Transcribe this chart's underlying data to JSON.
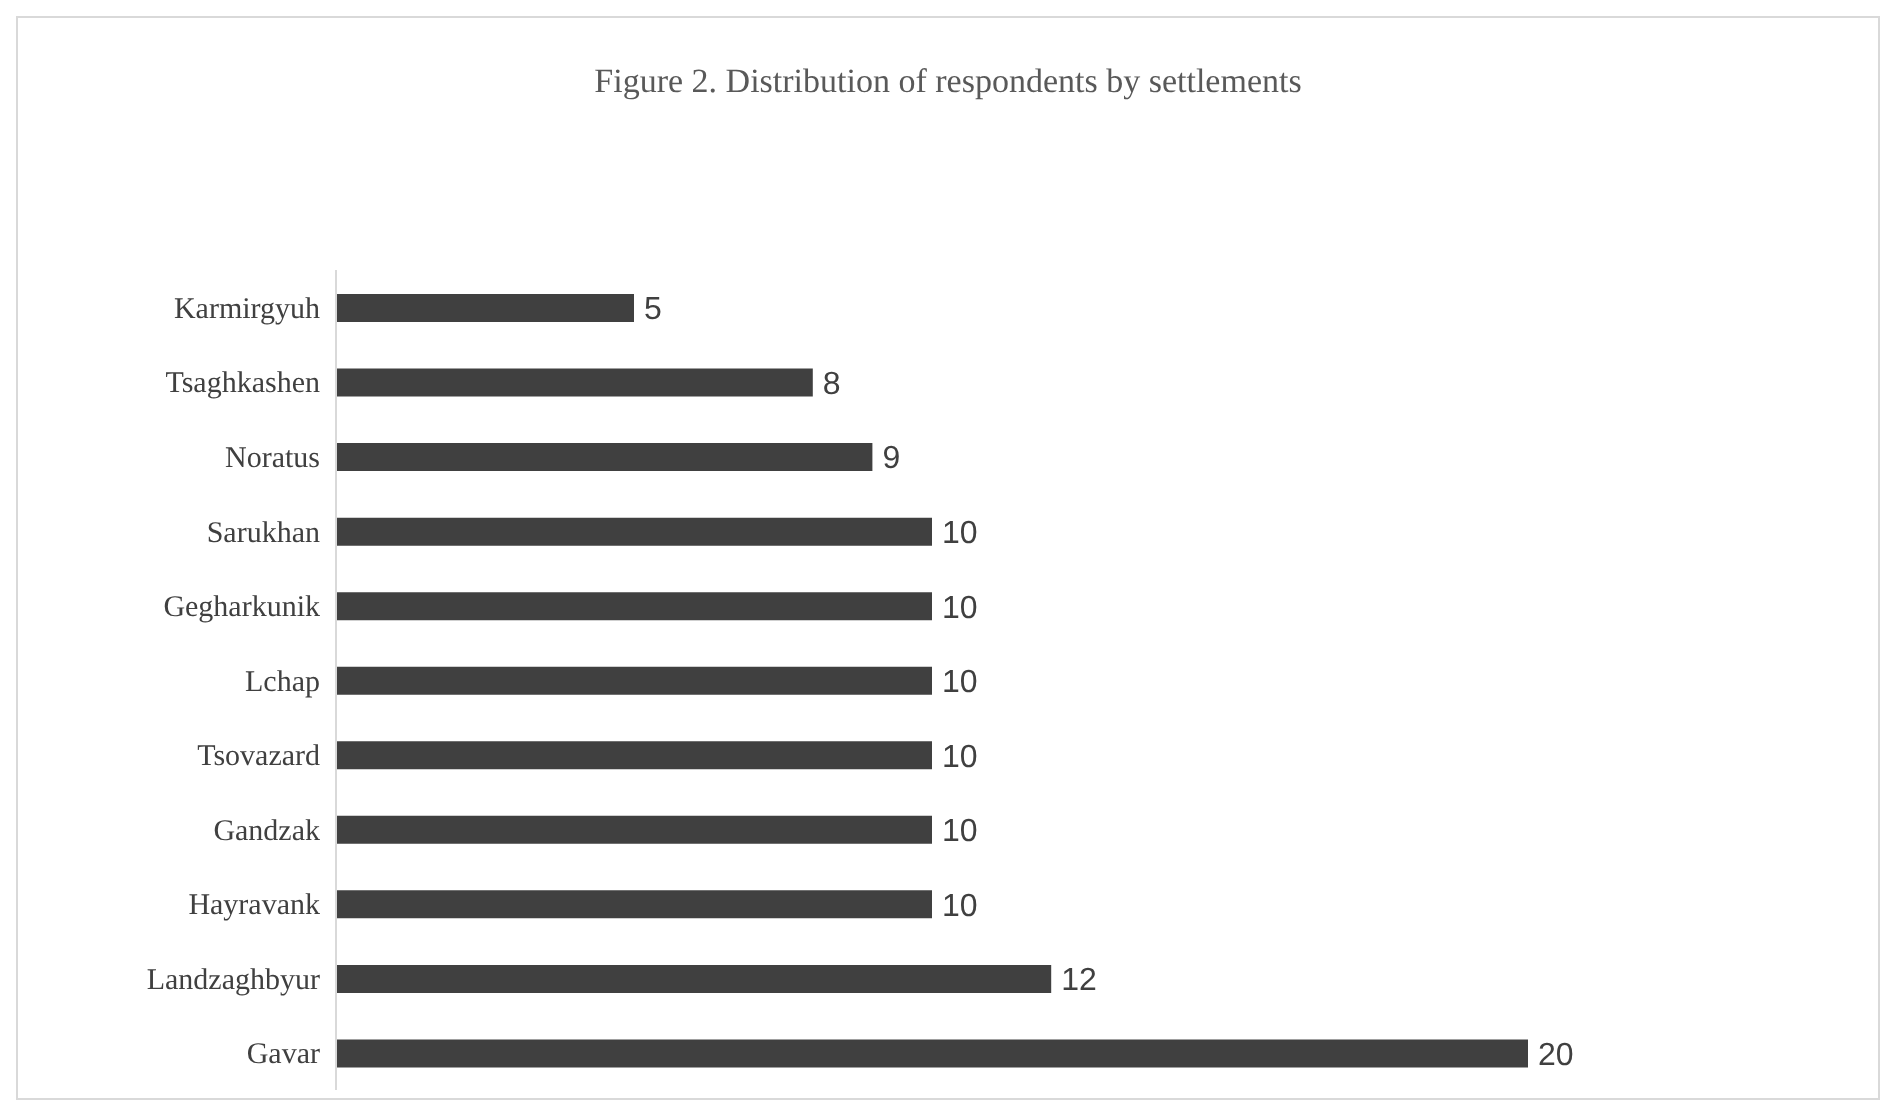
{
  "chart_data": {
    "type": "bar",
    "orientation": "horizontal",
    "title": "Figure 2. Distribution of respondents by settlements",
    "categories": [
      "Karmirgyuh",
      "Tsaghkashen",
      "Noratus",
      "Sarukhan",
      "Gegharkunik",
      "Lchap",
      "Tsovazard",
      "Gandzak",
      "Hayravank",
      "Landzaghbyur",
      "Gavar"
    ],
    "values": [
      5,
      8,
      9,
      10,
      10,
      10,
      10,
      10,
      10,
      12,
      20
    ],
    "color": "#404040",
    "data_labels": true
  }
}
